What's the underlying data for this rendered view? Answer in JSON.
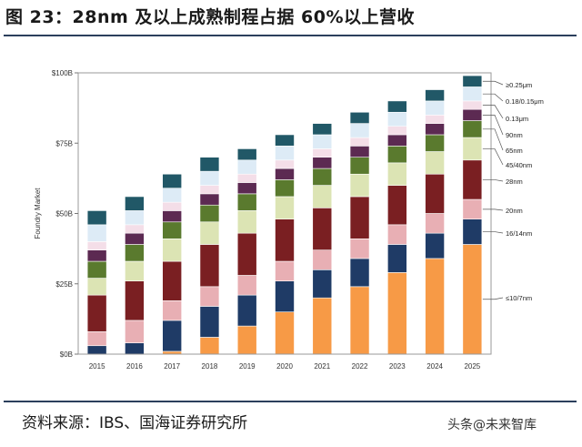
{
  "figure": {
    "title": "图 23：28nm 及以上成熟制程占据 60%以上营收",
    "source": "资料来源：IBS、国海证券研究所",
    "watermark": "头条@未来智库"
  },
  "colors": {
    "le10_7nm": "#F79A46",
    "n16_14nm": "#1F3B66",
    "n20nm": "#E8AFB4",
    "n28nm": "#7A1F22",
    "n45_40nm": "#DCE4B4",
    "n65nm": "#5A7A2E",
    "n90nm": "#5C2A52",
    "n0_13um": "#F4DEE8",
    "n0_18_0_15um": "#DDEBF6",
    "ge0_25um": "#215867"
  },
  "chart_data": {
    "type": "bar",
    "stacked": true,
    "title": "",
    "xlabel": "",
    "ylabel": "Foundry Market",
    "ylim": [
      0,
      100
    ],
    "y_ticks": [
      0,
      25,
      50,
      75,
      100
    ],
    "y_tick_labels": [
      "$0B",
      "$25B",
      "$50B",
      "$75B",
      "$100B"
    ],
    "grid": false,
    "legend_placement": "right",
    "categories": [
      "2015",
      "2016",
      "2017",
      "2018",
      "2019",
      "2020",
      "2021",
      "2022",
      "2023",
      "2024",
      "2025"
    ],
    "series": [
      {
        "name": "≤10/7nm",
        "color_key": "le10_7nm",
        "values": [
          0,
          0,
          1,
          6,
          10,
          15,
          20,
          24,
          29,
          34,
          39
        ]
      },
      {
        "name": "16/14nm",
        "color_key": "n16_14nm",
        "values": [
          3,
          4,
          11,
          11,
          11,
          11,
          10,
          10,
          10,
          9,
          9
        ]
      },
      {
        "name": "20nm",
        "color_key": "n20nm",
        "values": [
          5,
          8,
          7,
          7,
          7,
          7,
          7,
          7,
          7,
          7,
          7
        ]
      },
      {
        "name": "28nm",
        "color_key": "n28nm",
        "values": [
          13,
          14,
          14,
          15,
          15,
          15,
          15,
          15,
          14,
          14,
          14
        ]
      },
      {
        "name": "45/40nm",
        "color_key": "n45_40nm",
        "values": [
          6,
          7,
          8,
          8,
          8,
          8,
          8,
          8,
          8,
          8,
          8
        ]
      },
      {
        "name": "65nm",
        "color_key": "n65nm",
        "values": [
          6,
          6,
          6,
          6,
          6,
          6,
          6,
          6,
          6,
          6,
          6
        ]
      },
      {
        "name": "90nm",
        "color_key": "n90nm",
        "values": [
          4,
          4,
          4,
          4,
          4,
          4,
          4,
          4,
          4,
          4,
          4
        ]
      },
      {
        "name": "0.13μm",
        "color_key": "n0_13um",
        "values": [
          3,
          3,
          3,
          3,
          3,
          3,
          3,
          3,
          3,
          3,
          3
        ]
      },
      {
        "name": "0.18/0.15μm",
        "color_key": "n0_18_0_15um",
        "values": [
          6,
          5,
          5,
          5,
          5,
          5,
          5,
          5,
          5,
          5,
          5
        ]
      },
      {
        "name": "≥0.25μm",
        "color_key": "ge0_25um",
        "values": [
          5,
          5,
          5,
          5,
          4,
          4,
          4,
          4,
          4,
          4,
          4
        ]
      }
    ],
    "right_labels_order": [
      "≥0.25μm",
      "0.18/0.15μm",
      "0.13μm",
      "90nm",
      "65nm",
      "45/40nm",
      "28nm",
      "20nm",
      "16/14nm",
      "≤10/7nm"
    ]
  }
}
